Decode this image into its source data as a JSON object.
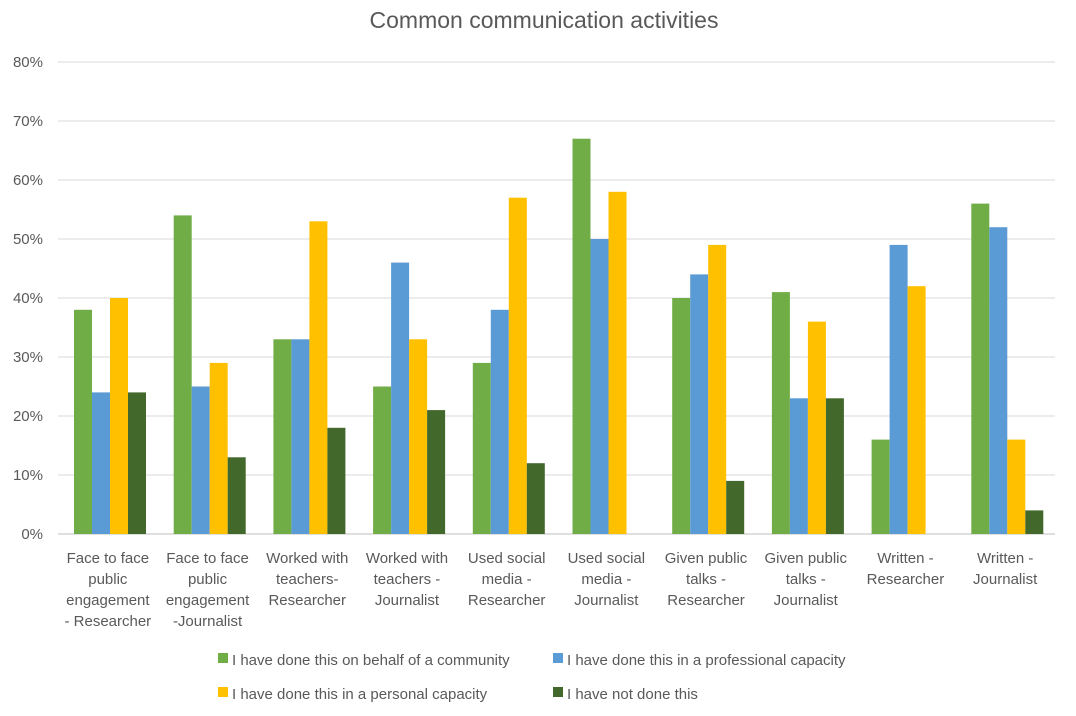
{
  "chart_data": {
    "type": "bar",
    "title": "Common communication activities",
    "xlabel": "",
    "ylabel": "",
    "ylim": [
      0,
      80
    ],
    "yticks": [
      "0%",
      "10%",
      "20%",
      "30%",
      "40%",
      "50%",
      "60%",
      "70%",
      "80%"
    ],
    "grid": true,
    "legend_position": "bottom",
    "categories": [
      [
        "Face to face",
        "public",
        "engagement",
        "- Researcher"
      ],
      [
        "Face to face",
        "public",
        "engagement",
        "-Journalist"
      ],
      [
        "Worked with",
        "teachers-",
        "Researcher"
      ],
      [
        "Worked with",
        "teachers -",
        "Journalist"
      ],
      [
        "Used social",
        "media -",
        "Researcher"
      ],
      [
        "Used social",
        "media -",
        "Journalist"
      ],
      [
        "Given public",
        "talks -",
        "Researcher"
      ],
      [
        "Given public",
        "talks -",
        "Journalist"
      ],
      [
        "Written -",
        "Researcher"
      ],
      [
        "Written -",
        "Journalist"
      ]
    ],
    "series": [
      {
        "name": "I have done this on behalf of a community",
        "color": "#70ad47",
        "values": [
          38,
          54,
          33,
          25,
          29,
          67,
          40,
          41,
          16,
          56
        ]
      },
      {
        "name": "I have done this in a professional capacity",
        "color": "#5b9bd5",
        "values": [
          24,
          25,
          33,
          46,
          38,
          50,
          44,
          23,
          49,
          52
        ]
      },
      {
        "name": "I have done this in a personal capacity",
        "color": "#ffc000",
        "values": [
          40,
          29,
          53,
          33,
          57,
          58,
          49,
          36,
          42,
          16
        ]
      },
      {
        "name": "I have not done this",
        "color": "#43682b",
        "values": [
          24,
          13,
          18,
          21,
          12,
          0,
          9,
          23,
          0,
          4
        ]
      }
    ]
  }
}
